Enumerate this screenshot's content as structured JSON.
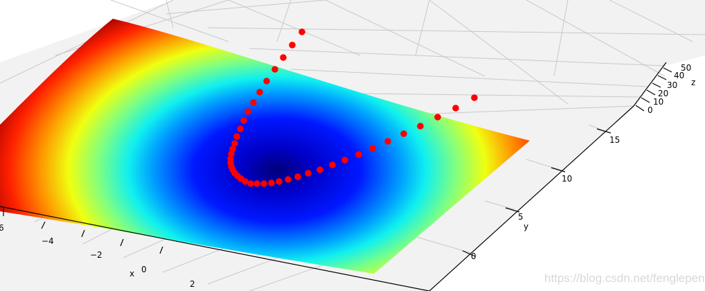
{
  "chart_data": {
    "type": "surface3d+scatter",
    "colormap": "jet",
    "scatter_color": "#ff0000",
    "xlabel": "x",
    "ylabel": "y",
    "zlabel": "z",
    "x_ticks": [
      "6",
      "−4",
      "−2",
      "0",
      "2"
    ],
    "y_ticks": [
      "0",
      "5",
      "10",
      "15"
    ],
    "z_ticks": [
      "0",
      "10",
      "20",
      "30",
      "40",
      "50"
    ],
    "grid": true
  },
  "watermark": "https://blog.csdn.net/fenglepeng"
}
